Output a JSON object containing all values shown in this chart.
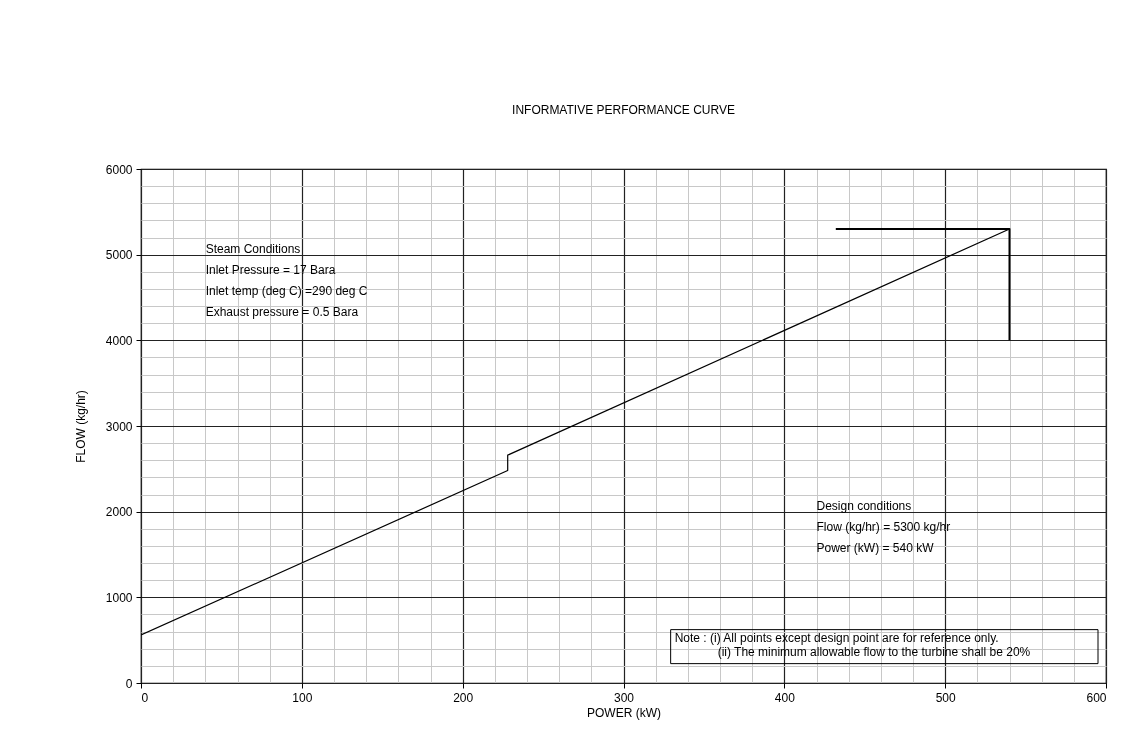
{
  "chart_data": {
    "type": "line",
    "title": "INFORMATIVE PERFORMANCE CURVE",
    "xlabel": "POWER (kW)",
    "ylabel": "FLOW (kg/hr)",
    "xlim": [
      0,
      600
    ],
    "ylim": [
      0,
      6000
    ],
    "xticks": [
      0,
      {
        "value": 20,
        "label": null
      },
      {
        "value": 40,
        "label": null
      },
      {
        "value": 60,
        "label": null
      },
      {
        "value": 80,
        "label": null
      },
      100,
      {
        "value": 120,
        "label": null
      },
      {
        "value": 140,
        "label": null
      },
      {
        "value": 160,
        "label": null
      },
      {
        "value": 180,
        "label": null
      },
      200,
      {
        "value": 220,
        "label": null
      },
      {
        "value": 240,
        "label": null
      },
      {
        "value": 260,
        "label": null
      },
      {
        "value": 280,
        "label": null
      },
      300,
      {
        "value": 320,
        "label": null
      },
      {
        "value": 340,
        "label": null
      },
      {
        "value": 360,
        "label": null
      },
      {
        "value": 380,
        "label": null
      },
      400,
      {
        "value": 420,
        "label": null
      },
      {
        "value": 440,
        "label": null
      },
      {
        "value": 460,
        "label": null
      },
      {
        "value": 480,
        "label": null
      },
      500,
      {
        "value": 520,
        "label": null
      },
      {
        "value": 540,
        "label": null
      },
      {
        "value": 560,
        "label": null
      },
      {
        "value": 580,
        "label": null
      },
      600
    ],
    "yticks": [
      0,
      {
        "value": 200,
        "label": null
      },
      {
        "value": 400,
        "label": null
      },
      {
        "value": 600,
        "label": null
      },
      {
        "value": 800,
        "label": null
      },
      1000,
      {
        "value": 1200,
        "label": null
      },
      {
        "value": 1400,
        "label": null
      },
      {
        "value": 1600,
        "label": null
      },
      {
        "value": 1800,
        "label": null
      },
      2000,
      {
        "value": 2200,
        "label": null
      },
      {
        "value": 2400,
        "label": null
      },
      {
        "value": 2600,
        "label": null
      },
      {
        "value": 2800,
        "label": null
      },
      3000,
      {
        "value": 3200,
        "label": null
      },
      {
        "value": 3400,
        "label": null
      },
      {
        "value": 3600,
        "label": null
      },
      {
        "value": 3800,
        "label": null
      },
      4000,
      {
        "value": 4200,
        "label": null
      },
      {
        "value": 4400,
        "label": null
      },
      {
        "value": 4600,
        "label": null
      },
      {
        "value": 4800,
        "label": null
      },
      5000,
      {
        "value": 5200,
        "label": null
      },
      {
        "value": 5400,
        "label": null
      },
      {
        "value": 5600,
        "label": null
      },
      {
        "value": 5800,
        "label": null
      },
      6000
    ],
    "grid": true,
    "series": [
      {
        "color": "#000000",
        "x": [
          0,
          228,
          228,
          540
        ],
        "values": [
          560,
          2480,
          2660,
          5300
        ]
      },
      {
        "color": "#000000",
        "x": [
          432,
          540,
          540
        ],
        "values": [
          5300,
          5300,
          4000
        ]
      }
    ],
    "annotations": [
      "Steam Conditions\nInlet Pressure = 17 Bara\nInlet temp (deg C) =290 deg C\nExhaust pressure = 0.5 Bara",
      "Design conditions\nFlow (kg/hr) = 5300 kg/hr\nPower (kW) = 540 kW",
      "Note : (i) All points except design point are for reference only.\n(ii) The minimum allowable flow to the turbine shall be 20%"
    ]
  }
}
